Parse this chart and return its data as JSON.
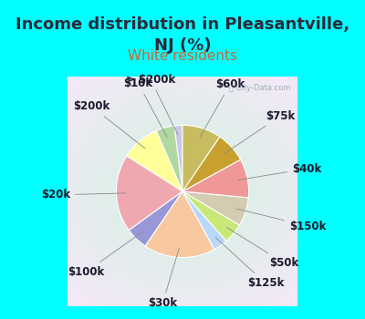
{
  "title": "Income distribution in Pleasantville,\nNJ (%)",
  "subtitle": "White residents",
  "background_color": "#00ffff",
  "title_color": "#2a2a3a",
  "subtitle_color": "#cc6633",
  "labels": [
    "> $200k",
    "$10k",
    "$200k",
    "$20k",
    "$100k",
    "$30k",
    "$125k",
    "$50k",
    "$150k",
    "$40k",
    "$75k",
    "$60k"
  ],
  "values": [
    2.0,
    4.5,
    9.5,
    19.0,
    5.5,
    17.5,
    3.5,
    5.0,
    7.0,
    9.5,
    7.5,
    9.5
  ],
  "colors": [
    "#c8c8e8",
    "#b0d8a0",
    "#ffff99",
    "#f0a8b0",
    "#9898d8",
    "#f8c8a0",
    "#b8d8f8",
    "#c8e878",
    "#d4ccb0",
    "#f09898",
    "#c8a030",
    "#c8bc60"
  ],
  "startangle": 90,
  "title_fontsize": 13,
  "subtitle_fontsize": 11,
  "label_fontsize": 8.5
}
